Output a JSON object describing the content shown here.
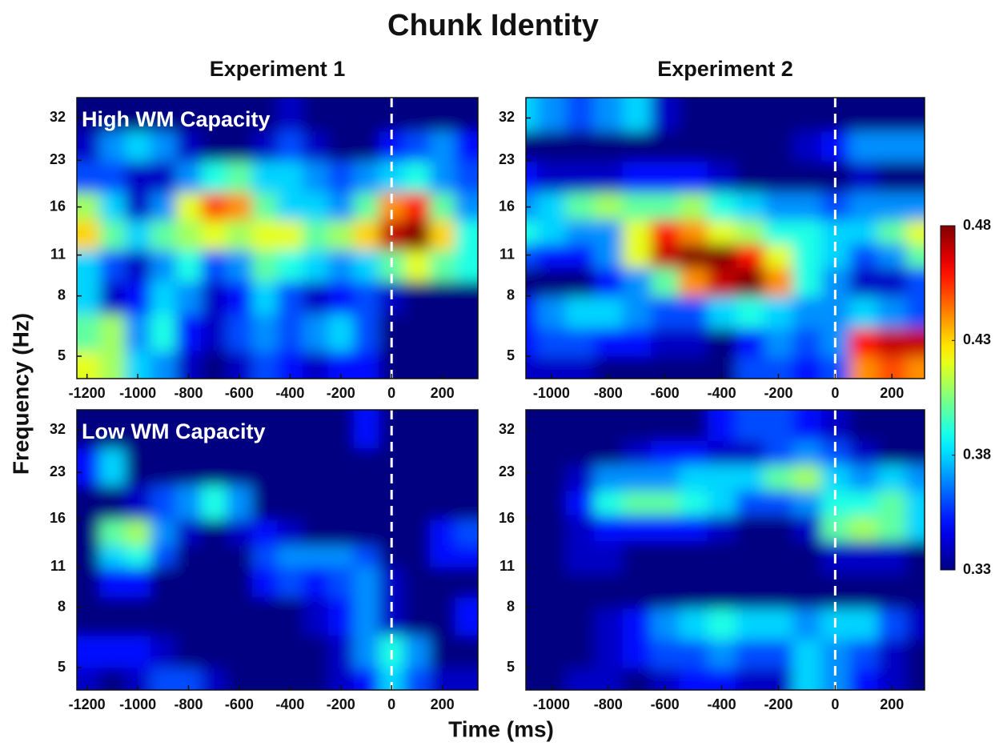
{
  "figure": {
    "title": "Chunk Identity",
    "xlabel": "Time (ms)",
    "ylabel": "Frequency (Hz)",
    "colorbar": {
      "clim": [
        0.33,
        0.48
      ],
      "ticks": [
        0.33,
        0.38,
        0.43,
        0.48
      ],
      "colormap": "jet"
    }
  },
  "chart_data": [
    {
      "type": "heatmap",
      "title": "Experiment 1",
      "annotation": "High WM Capacity",
      "vline": 0,
      "yscale": "log",
      "xlim": [
        -1240,
        340
      ],
      "xticks": [
        -1200,
        -1000,
        -800,
        -600,
        -400,
        -200,
        0,
        200
      ],
      "ylim": [
        4.2,
        37.5
      ],
      "yticks": [
        32,
        23,
        16,
        11,
        8,
        5
      ],
      "x": [
        -1200,
        -1100,
        -1000,
        -900,
        -800,
        -700,
        -600,
        -500,
        -400,
        -300,
        -200,
        -100,
        0,
        100,
        200,
        300
      ],
      "y": [
        32,
        26,
        20,
        16,
        13,
        10,
        8,
        6,
        4.5
      ],
      "z": [
        [
          0.33,
          0.33,
          0.33,
          0.33,
          0.33,
          0.33,
          0.33,
          0.33,
          0.34,
          0.33,
          0.33,
          0.33,
          0.33,
          0.33,
          0.33,
          0.33
        ],
        [
          0.34,
          0.37,
          0.38,
          0.37,
          0.34,
          0.33,
          0.33,
          0.34,
          0.36,
          0.34,
          0.33,
          0.33,
          0.35,
          0.36,
          0.37,
          0.35
        ],
        [
          0.36,
          0.36,
          0.34,
          0.34,
          0.37,
          0.39,
          0.4,
          0.38,
          0.38,
          0.37,
          0.36,
          0.37,
          0.38,
          0.39,
          0.37,
          0.36
        ],
        [
          0.41,
          0.38,
          0.34,
          0.37,
          0.42,
          0.45,
          0.44,
          0.4,
          0.38,
          0.38,
          0.37,
          0.4,
          0.44,
          0.46,
          0.4,
          0.37
        ],
        [
          0.43,
          0.4,
          0.38,
          0.4,
          0.41,
          0.42,
          0.41,
          0.42,
          0.42,
          0.4,
          0.41,
          0.43,
          0.47,
          0.48,
          0.43,
          0.39
        ],
        [
          0.38,
          0.36,
          0.34,
          0.37,
          0.39,
          0.36,
          0.37,
          0.4,
          0.39,
          0.38,
          0.37,
          0.38,
          0.4,
          0.42,
          0.4,
          0.39
        ],
        [
          0.38,
          0.34,
          0.35,
          0.38,
          0.37,
          0.34,
          0.35,
          0.38,
          0.36,
          0.34,
          0.35,
          0.36,
          0.34,
          0.33,
          0.33,
          0.33
        ],
        [
          0.4,
          0.41,
          0.37,
          0.39,
          0.35,
          0.34,
          0.36,
          0.37,
          0.36,
          0.37,
          0.38,
          0.36,
          0.33,
          0.33,
          0.33,
          0.33
        ],
        [
          0.42,
          0.41,
          0.38,
          0.37,
          0.34,
          0.33,
          0.34,
          0.36,
          0.35,
          0.34,
          0.35,
          0.35,
          0.33,
          0.33,
          0.33,
          0.33
        ]
      ]
    },
    {
      "type": "heatmap",
      "title": "Experiment 2",
      "vline": 0,
      "yscale": "log",
      "xlim": [
        -1090,
        315
      ],
      "xticks": [
        -1000,
        -800,
        -600,
        -400,
        -200,
        0,
        200
      ],
      "ylim": [
        4.2,
        37.5
      ],
      "yticks": [
        32,
        23,
        16,
        11,
        8,
        5
      ],
      "x": [
        -1100,
        -1000,
        -900,
        -800,
        -700,
        -600,
        -500,
        -400,
        -300,
        -200,
        -100,
        0,
        100,
        200,
        300
      ],
      "y": [
        32,
        26,
        20,
        16,
        13,
        11,
        9,
        7,
        5.5,
        4.5
      ],
      "z": [
        [
          0.38,
          0.37,
          0.36,
          0.37,
          0.38,
          0.34,
          0.33,
          0.33,
          0.33,
          0.33,
          0.33,
          0.33,
          0.33,
          0.33,
          0.33
        ],
        [
          0.33,
          0.33,
          0.33,
          0.33,
          0.33,
          0.33,
          0.33,
          0.33,
          0.33,
          0.33,
          0.34,
          0.35,
          0.37,
          0.37,
          0.37
        ],
        [
          0.35,
          0.34,
          0.34,
          0.34,
          0.35,
          0.35,
          0.35,
          0.34,
          0.33,
          0.33,
          0.33,
          0.33,
          0.34,
          0.33,
          0.33
        ],
        [
          0.37,
          0.38,
          0.4,
          0.41,
          0.4,
          0.4,
          0.41,
          0.39,
          0.38,
          0.37,
          0.37,
          0.36,
          0.37,
          0.37,
          0.37
        ],
        [
          0.39,
          0.38,
          0.37,
          0.37,
          0.42,
          0.46,
          0.44,
          0.42,
          0.41,
          0.39,
          0.39,
          0.38,
          0.38,
          0.4,
          0.42
        ],
        [
          0.36,
          0.35,
          0.35,
          0.37,
          0.42,
          0.47,
          0.48,
          0.48,
          0.46,
          0.42,
          0.39,
          0.38,
          0.36,
          0.37,
          0.4
        ],
        [
          0.33,
          0.33,
          0.33,
          0.35,
          0.37,
          0.4,
          0.44,
          0.47,
          0.48,
          0.44,
          0.39,
          0.37,
          0.34,
          0.34,
          0.36
        ],
        [
          0.35,
          0.37,
          0.38,
          0.38,
          0.37,
          0.36,
          0.36,
          0.38,
          0.39,
          0.38,
          0.37,
          0.37,
          0.38,
          0.37,
          0.36
        ],
        [
          0.35,
          0.36,
          0.36,
          0.35,
          0.35,
          0.34,
          0.34,
          0.33,
          0.35,
          0.37,
          0.36,
          0.37,
          0.46,
          0.47,
          0.47
        ],
        [
          0.34,
          0.34,
          0.34,
          0.33,
          0.33,
          0.33,
          0.33,
          0.33,
          0.36,
          0.36,
          0.35,
          0.36,
          0.44,
          0.45,
          0.44
        ]
      ]
    },
    {
      "type": "heatmap",
      "annotation": "Low WM Capacity",
      "vline": 0,
      "yscale": "log",
      "xlim": [
        -1240,
        340
      ],
      "xticks": [
        -1200,
        -1000,
        -800,
        -600,
        -400,
        -200,
        0,
        200
      ],
      "ylim": [
        4.2,
        37.5
      ],
      "yticks": [
        32,
        23,
        16,
        11,
        8,
        5
      ],
      "x": [
        -1200,
        -1100,
        -1000,
        -900,
        -800,
        -700,
        -600,
        -500,
        -400,
        -300,
        -200,
        -100,
        0,
        100,
        200,
        300
      ],
      "y": [
        32,
        24,
        18,
        14,
        12,
        10,
        7.5,
        5.5,
        4.5
      ],
      "z": [
        [
          0.33,
          0.33,
          0.33,
          0.33,
          0.33,
          0.33,
          0.33,
          0.33,
          0.33,
          0.33,
          0.33,
          0.35,
          0.33,
          0.33,
          0.33,
          0.33
        ],
        [
          0.35,
          0.38,
          0.33,
          0.33,
          0.33,
          0.33,
          0.33,
          0.33,
          0.33,
          0.33,
          0.33,
          0.33,
          0.33,
          0.33,
          0.33,
          0.33
        ],
        [
          0.33,
          0.33,
          0.34,
          0.36,
          0.37,
          0.39,
          0.37,
          0.33,
          0.33,
          0.33,
          0.33,
          0.33,
          0.33,
          0.33,
          0.33,
          0.33
        ],
        [
          0.33,
          0.4,
          0.41,
          0.37,
          0.34,
          0.33,
          0.34,
          0.35,
          0.34,
          0.33,
          0.33,
          0.33,
          0.33,
          0.33,
          0.35,
          0.36
        ],
        [
          0.33,
          0.38,
          0.39,
          0.36,
          0.33,
          0.33,
          0.33,
          0.36,
          0.37,
          0.37,
          0.37,
          0.36,
          0.33,
          0.33,
          0.35,
          0.35
        ],
        [
          0.33,
          0.35,
          0.35,
          0.33,
          0.33,
          0.33,
          0.33,
          0.35,
          0.36,
          0.35,
          0.36,
          0.37,
          0.34,
          0.33,
          0.33,
          0.33
        ],
        [
          0.33,
          0.33,
          0.33,
          0.33,
          0.33,
          0.33,
          0.33,
          0.33,
          0.33,
          0.34,
          0.35,
          0.37,
          0.34,
          0.33,
          0.33,
          0.35
        ],
        [
          0.35,
          0.35,
          0.35,
          0.34,
          0.33,
          0.33,
          0.33,
          0.33,
          0.33,
          0.33,
          0.34,
          0.37,
          0.39,
          0.37,
          0.33,
          0.33
        ],
        [
          0.34,
          0.33,
          0.34,
          0.36,
          0.36,
          0.34,
          0.33,
          0.33,
          0.33,
          0.33,
          0.34,
          0.35,
          0.38,
          0.36,
          0.34,
          0.34
        ]
      ]
    },
    {
      "type": "heatmap",
      "vline": 0,
      "yscale": "log",
      "xlim": [
        -1090,
        315
      ],
      "xticks": [
        -1000,
        -800,
        -600,
        -400,
        -200,
        0,
        200
      ],
      "ylim": [
        4.2,
        37.5
      ],
      "yticks": [
        32,
        23,
        16,
        11,
        8,
        5
      ],
      "x": [
        -1100,
        -1000,
        -900,
        -800,
        -700,
        -600,
        -500,
        -400,
        -300,
        -200,
        -100,
        0,
        100,
        200,
        300
      ],
      "y": [
        32,
        27,
        22,
        18,
        15,
        12,
        9,
        7,
        5.5,
        4.5
      ],
      "z": [
        [
          0.33,
          0.33,
          0.33,
          0.33,
          0.33,
          0.33,
          0.33,
          0.35,
          0.36,
          0.36,
          0.35,
          0.34,
          0.33,
          0.33,
          0.33
        ],
        [
          0.33,
          0.33,
          0.33,
          0.33,
          0.34,
          0.35,
          0.35,
          0.34,
          0.34,
          0.36,
          0.37,
          0.36,
          0.34,
          0.33,
          0.33
        ],
        [
          0.33,
          0.33,
          0.34,
          0.37,
          0.37,
          0.37,
          0.38,
          0.38,
          0.38,
          0.4,
          0.41,
          0.38,
          0.37,
          0.38,
          0.37
        ],
        [
          0.33,
          0.33,
          0.35,
          0.39,
          0.4,
          0.4,
          0.39,
          0.38,
          0.36,
          0.36,
          0.37,
          0.39,
          0.39,
          0.4,
          0.38
        ],
        [
          0.33,
          0.33,
          0.34,
          0.35,
          0.35,
          0.35,
          0.35,
          0.34,
          0.33,
          0.33,
          0.34,
          0.4,
          0.41,
          0.4,
          0.38
        ],
        [
          0.33,
          0.33,
          0.34,
          0.34,
          0.33,
          0.33,
          0.33,
          0.33,
          0.33,
          0.33,
          0.33,
          0.34,
          0.34,
          0.34,
          0.33
        ],
        [
          0.33,
          0.33,
          0.33,
          0.33,
          0.33,
          0.33,
          0.33,
          0.33,
          0.33,
          0.33,
          0.33,
          0.33,
          0.33,
          0.33,
          0.33
        ],
        [
          0.33,
          0.33,
          0.33,
          0.34,
          0.35,
          0.37,
          0.38,
          0.39,
          0.38,
          0.38,
          0.37,
          0.38,
          0.38,
          0.36,
          0.34
        ],
        [
          0.33,
          0.33,
          0.33,
          0.34,
          0.35,
          0.36,
          0.36,
          0.37,
          0.36,
          0.36,
          0.38,
          0.37,
          0.36,
          0.34,
          0.33
        ],
        [
          0.33,
          0.33,
          0.34,
          0.34,
          0.33,
          0.34,
          0.35,
          0.35,
          0.34,
          0.34,
          0.38,
          0.37,
          0.35,
          0.34,
          0.33
        ]
      ]
    }
  ]
}
